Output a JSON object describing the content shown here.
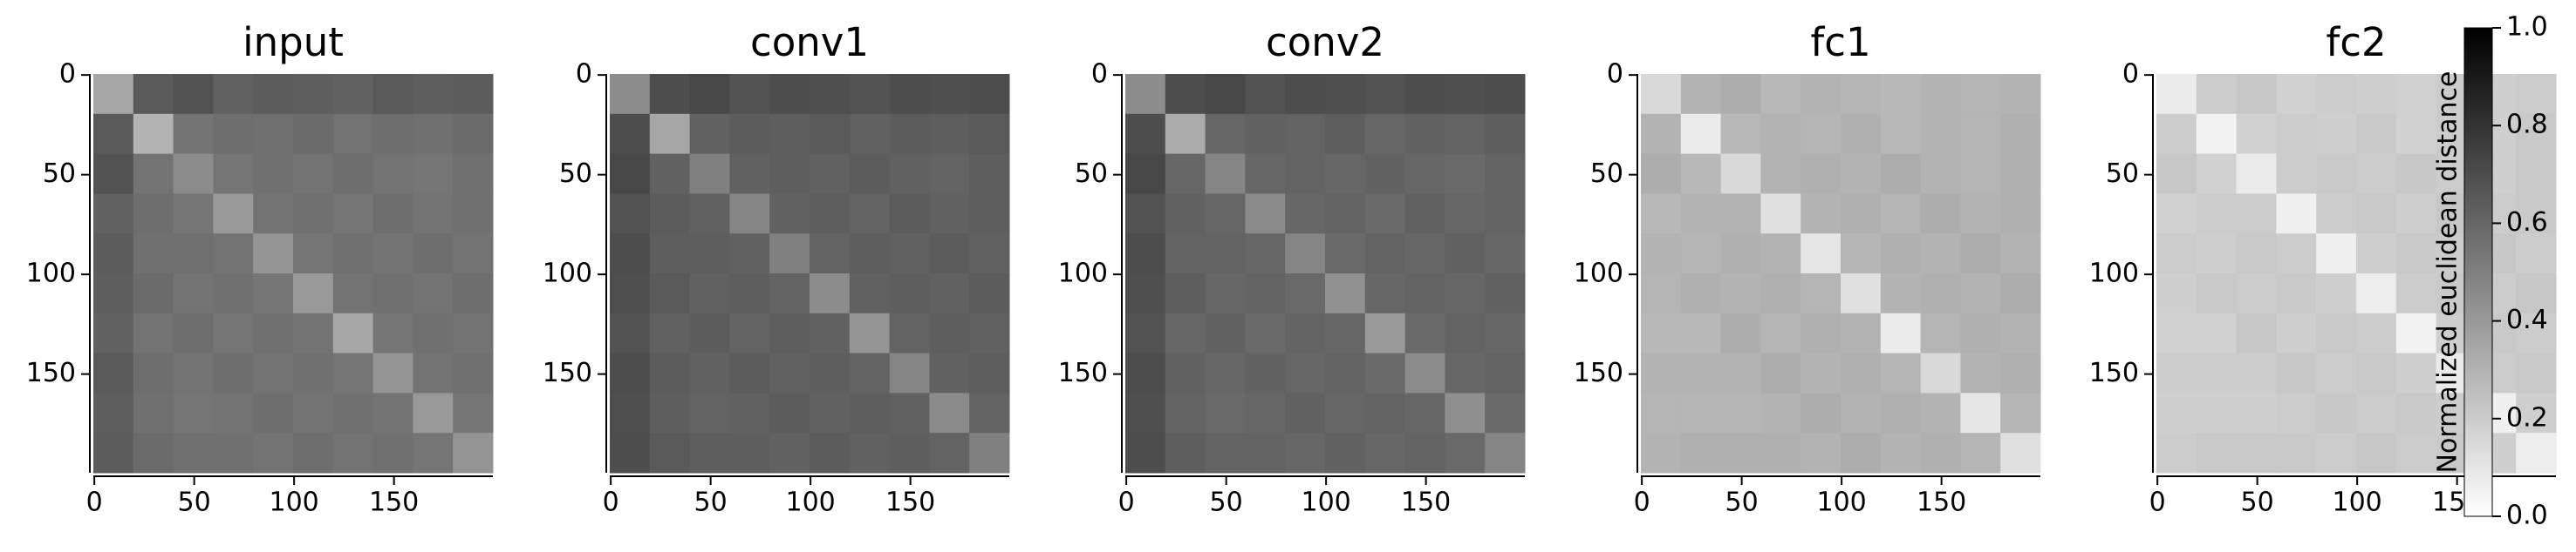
{
  "chart_data": [
    {
      "type": "heatmap",
      "title": "input",
      "xlim": [
        -0.5,
        199.5
      ],
      "ylim": [
        -0.5,
        199.5
      ],
      "xticks": [
        0,
        50,
        100,
        150
      ],
      "yticks": [
        0,
        50,
        100,
        150
      ],
      "zlim": [
        0,
        1
      ],
      "values": [
        [
          0.35,
          0.65,
          0.68,
          0.62,
          0.64,
          0.63,
          0.62,
          0.65,
          0.63,
          0.64
        ],
        [
          0.65,
          0.3,
          0.55,
          0.57,
          0.56,
          0.58,
          0.55,
          0.57,
          0.56,
          0.58
        ],
        [
          0.68,
          0.55,
          0.45,
          0.54,
          0.56,
          0.55,
          0.57,
          0.55,
          0.54,
          0.56
        ],
        [
          0.62,
          0.57,
          0.54,
          0.4,
          0.55,
          0.56,
          0.54,
          0.57,
          0.55,
          0.56
        ],
        [
          0.64,
          0.56,
          0.56,
          0.55,
          0.42,
          0.54,
          0.56,
          0.55,
          0.57,
          0.55
        ],
        [
          0.63,
          0.58,
          0.55,
          0.56,
          0.54,
          0.4,
          0.55,
          0.56,
          0.55,
          0.57
        ],
        [
          0.62,
          0.55,
          0.57,
          0.54,
          0.56,
          0.55,
          0.35,
          0.54,
          0.56,
          0.55
        ],
        [
          0.65,
          0.57,
          0.55,
          0.57,
          0.55,
          0.56,
          0.54,
          0.42,
          0.55,
          0.56
        ],
        [
          0.63,
          0.56,
          0.54,
          0.55,
          0.57,
          0.55,
          0.56,
          0.55,
          0.4,
          0.54
        ],
        [
          0.64,
          0.58,
          0.56,
          0.56,
          0.55,
          0.57,
          0.55,
          0.56,
          0.54,
          0.42
        ]
      ]
    },
    {
      "type": "heatmap",
      "title": "conv1",
      "xlim": [
        -0.5,
        199.5
      ],
      "ylim": [
        -0.5,
        199.5
      ],
      "xticks": [
        0,
        50,
        100,
        150
      ],
      "yticks": [
        0,
        50,
        100,
        150
      ],
      "zlim": [
        0,
        1
      ],
      "values": [
        [
          0.45,
          0.7,
          0.72,
          0.68,
          0.7,
          0.69,
          0.68,
          0.7,
          0.69,
          0.7
        ],
        [
          0.7,
          0.35,
          0.62,
          0.64,
          0.63,
          0.65,
          0.62,
          0.64,
          0.63,
          0.65
        ],
        [
          0.72,
          0.62,
          0.5,
          0.62,
          0.63,
          0.62,
          0.64,
          0.62,
          0.61,
          0.63
        ],
        [
          0.68,
          0.64,
          0.62,
          0.48,
          0.62,
          0.63,
          0.61,
          0.64,
          0.62,
          0.63
        ],
        [
          0.7,
          0.63,
          0.63,
          0.62,
          0.5,
          0.61,
          0.63,
          0.62,
          0.64,
          0.62
        ],
        [
          0.69,
          0.65,
          0.62,
          0.63,
          0.61,
          0.45,
          0.62,
          0.63,
          0.62,
          0.64
        ],
        [
          0.68,
          0.62,
          0.64,
          0.61,
          0.63,
          0.62,
          0.42,
          0.61,
          0.63,
          0.62
        ],
        [
          0.7,
          0.64,
          0.62,
          0.64,
          0.62,
          0.63,
          0.61,
          0.48,
          0.62,
          0.63
        ],
        [
          0.69,
          0.63,
          0.61,
          0.62,
          0.64,
          0.62,
          0.63,
          0.62,
          0.46,
          0.61
        ],
        [
          0.7,
          0.65,
          0.63,
          0.63,
          0.62,
          0.64,
          0.62,
          0.63,
          0.61,
          0.5
        ]
      ]
    },
    {
      "type": "heatmap",
      "title": "conv2",
      "xlim": [
        -0.5,
        199.5
      ],
      "ylim": [
        -0.5,
        199.5
      ],
      "xticks": [
        0,
        50,
        100,
        150
      ],
      "yticks": [
        0,
        50,
        100,
        150
      ],
      "zlim": [
        0,
        1
      ],
      "values": [
        [
          0.45,
          0.7,
          0.72,
          0.68,
          0.7,
          0.69,
          0.68,
          0.7,
          0.69,
          0.7
        ],
        [
          0.7,
          0.33,
          0.6,
          0.62,
          0.61,
          0.63,
          0.6,
          0.62,
          0.61,
          0.63
        ],
        [
          0.72,
          0.6,
          0.48,
          0.6,
          0.61,
          0.6,
          0.62,
          0.6,
          0.59,
          0.61
        ],
        [
          0.68,
          0.62,
          0.6,
          0.46,
          0.6,
          0.61,
          0.59,
          0.62,
          0.6,
          0.61
        ],
        [
          0.7,
          0.61,
          0.61,
          0.6,
          0.48,
          0.59,
          0.61,
          0.6,
          0.62,
          0.6
        ],
        [
          0.69,
          0.63,
          0.6,
          0.61,
          0.59,
          0.43,
          0.6,
          0.61,
          0.6,
          0.62
        ],
        [
          0.68,
          0.6,
          0.62,
          0.59,
          0.61,
          0.6,
          0.4,
          0.59,
          0.61,
          0.6
        ],
        [
          0.7,
          0.62,
          0.6,
          0.62,
          0.6,
          0.61,
          0.59,
          0.45,
          0.6,
          0.61
        ],
        [
          0.69,
          0.61,
          0.59,
          0.6,
          0.62,
          0.6,
          0.61,
          0.6,
          0.44,
          0.59
        ],
        [
          0.7,
          0.63,
          0.61,
          0.61,
          0.6,
          0.62,
          0.6,
          0.61,
          0.59,
          0.48
        ]
      ]
    },
    {
      "type": "heatmap",
      "title": "fc1",
      "xlim": [
        -0.5,
        199.5
      ],
      "ylim": [
        -0.5,
        199.5
      ],
      "xticks": [
        0,
        50,
        100,
        150
      ],
      "yticks": [
        0,
        50,
        100,
        150
      ],
      "zlim": [
        0,
        1
      ],
      "values": [
        [
          0.15,
          0.3,
          0.32,
          0.28,
          0.3,
          0.29,
          0.28,
          0.3,
          0.29,
          0.3
        ],
        [
          0.3,
          0.08,
          0.28,
          0.3,
          0.29,
          0.31,
          0.28,
          0.3,
          0.29,
          0.31
        ],
        [
          0.32,
          0.28,
          0.15,
          0.3,
          0.31,
          0.3,
          0.32,
          0.3,
          0.29,
          0.31
        ],
        [
          0.28,
          0.3,
          0.3,
          0.12,
          0.3,
          0.31,
          0.29,
          0.32,
          0.3,
          0.31
        ],
        [
          0.3,
          0.29,
          0.31,
          0.3,
          0.1,
          0.29,
          0.31,
          0.3,
          0.32,
          0.3
        ],
        [
          0.29,
          0.31,
          0.3,
          0.31,
          0.29,
          0.12,
          0.3,
          0.31,
          0.3,
          0.32
        ],
        [
          0.28,
          0.28,
          0.32,
          0.29,
          0.31,
          0.3,
          0.08,
          0.29,
          0.31,
          0.3
        ],
        [
          0.3,
          0.3,
          0.3,
          0.32,
          0.3,
          0.31,
          0.29,
          0.15,
          0.3,
          0.31
        ],
        [
          0.29,
          0.29,
          0.29,
          0.3,
          0.32,
          0.3,
          0.31,
          0.3,
          0.1,
          0.29
        ],
        [
          0.3,
          0.31,
          0.31,
          0.31,
          0.3,
          0.32,
          0.3,
          0.31,
          0.29,
          0.12
        ]
      ]
    },
    {
      "type": "heatmap",
      "title": "fc2",
      "xlim": [
        -0.5,
        199.5
      ],
      "ylim": [
        -0.5,
        199.5
      ],
      "xticks": [
        0,
        50,
        100,
        150
      ],
      "yticks": [
        0,
        50,
        100,
        150
      ],
      "zlim": [
        0,
        1
      ],
      "values": [
        [
          0.08,
          0.2,
          0.22,
          0.18,
          0.2,
          0.19,
          0.18,
          0.2,
          0.19,
          0.2
        ],
        [
          0.2,
          0.05,
          0.18,
          0.2,
          0.19,
          0.21,
          0.18,
          0.2,
          0.19,
          0.21
        ],
        [
          0.22,
          0.18,
          0.08,
          0.2,
          0.21,
          0.2,
          0.22,
          0.2,
          0.19,
          0.21
        ],
        [
          0.18,
          0.2,
          0.2,
          0.06,
          0.2,
          0.21,
          0.19,
          0.22,
          0.2,
          0.21
        ],
        [
          0.2,
          0.19,
          0.21,
          0.2,
          0.06,
          0.19,
          0.21,
          0.2,
          0.22,
          0.2
        ],
        [
          0.19,
          0.21,
          0.2,
          0.21,
          0.19,
          0.07,
          0.2,
          0.21,
          0.2,
          0.22
        ],
        [
          0.18,
          0.18,
          0.22,
          0.19,
          0.21,
          0.2,
          0.05,
          0.19,
          0.21,
          0.2
        ],
        [
          0.2,
          0.2,
          0.2,
          0.22,
          0.2,
          0.21,
          0.19,
          0.08,
          0.2,
          0.21
        ],
        [
          0.19,
          0.19,
          0.19,
          0.2,
          0.22,
          0.2,
          0.21,
          0.2,
          0.06,
          0.19
        ],
        [
          0.2,
          0.21,
          0.21,
          0.21,
          0.2,
          0.22,
          0.2,
          0.21,
          0.19,
          0.07
        ]
      ],
      "colorbar": {
        "label": "Normalized euclidean distance",
        "lim": [
          0,
          1
        ],
        "ticks": [
          {
            "value": 0,
            "label": "0.0"
          },
          0.2,
          0.4,
          0.6,
          0.8,
          {
            "value": 1,
            "label": "1.0"
          }
        ]
      }
    }
  ]
}
